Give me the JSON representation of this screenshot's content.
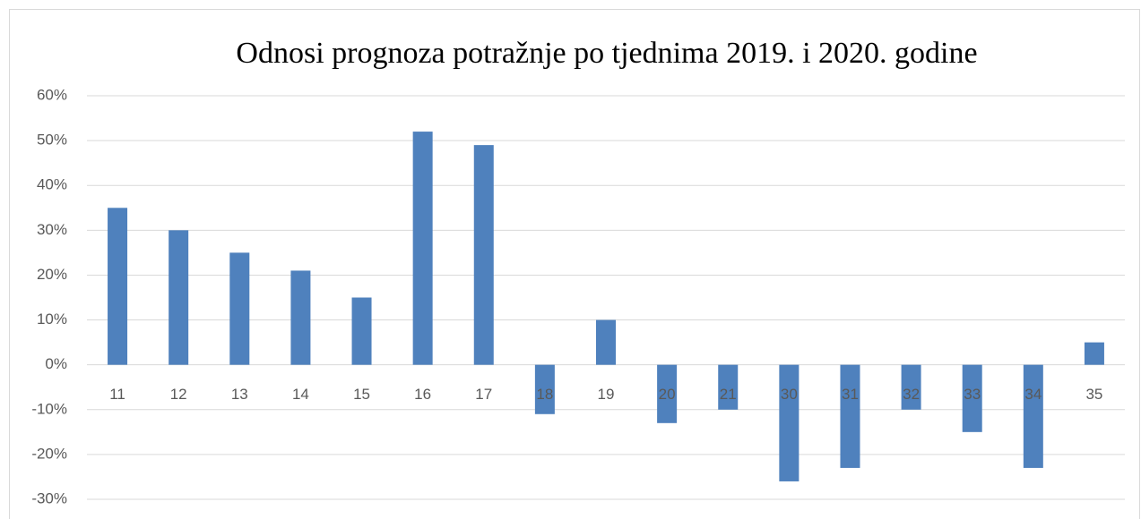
{
  "chart_data": {
    "type": "bar",
    "title": "Odnosi prognoza potražnje po tjednima 2019. i 2020. godine",
    "categories": [
      "11",
      "12",
      "13",
      "14",
      "15",
      "16",
      "17",
      "18",
      "19",
      "20",
      "21",
      "30",
      "31",
      "32",
      "33",
      "34",
      "35"
    ],
    "values": [
      35,
      30,
      25,
      21,
      15,
      52,
      49,
      -11,
      10,
      -13,
      -10,
      -26,
      -23,
      -10,
      -15,
      -23,
      5
    ],
    "color": "#4f81bd",
    "ylim": [
      -30,
      60
    ],
    "yticks": [
      {
        "value": -30,
        "label": "-30%"
      },
      {
        "value": -20,
        "label": "-20%"
      },
      {
        "value": -10,
        "label": "-10%"
      },
      {
        "value": 0,
        "label": "0%"
      },
      {
        "value": 10,
        "label": "10%"
      },
      {
        "value": 20,
        "label": "20%"
      },
      {
        "value": 30,
        "label": "30%"
      },
      {
        "value": 40,
        "label": "40%"
      },
      {
        "value": 50,
        "label": "50%"
      },
      {
        "value": 60,
        "label": "60%"
      }
    ],
    "grid": true
  }
}
